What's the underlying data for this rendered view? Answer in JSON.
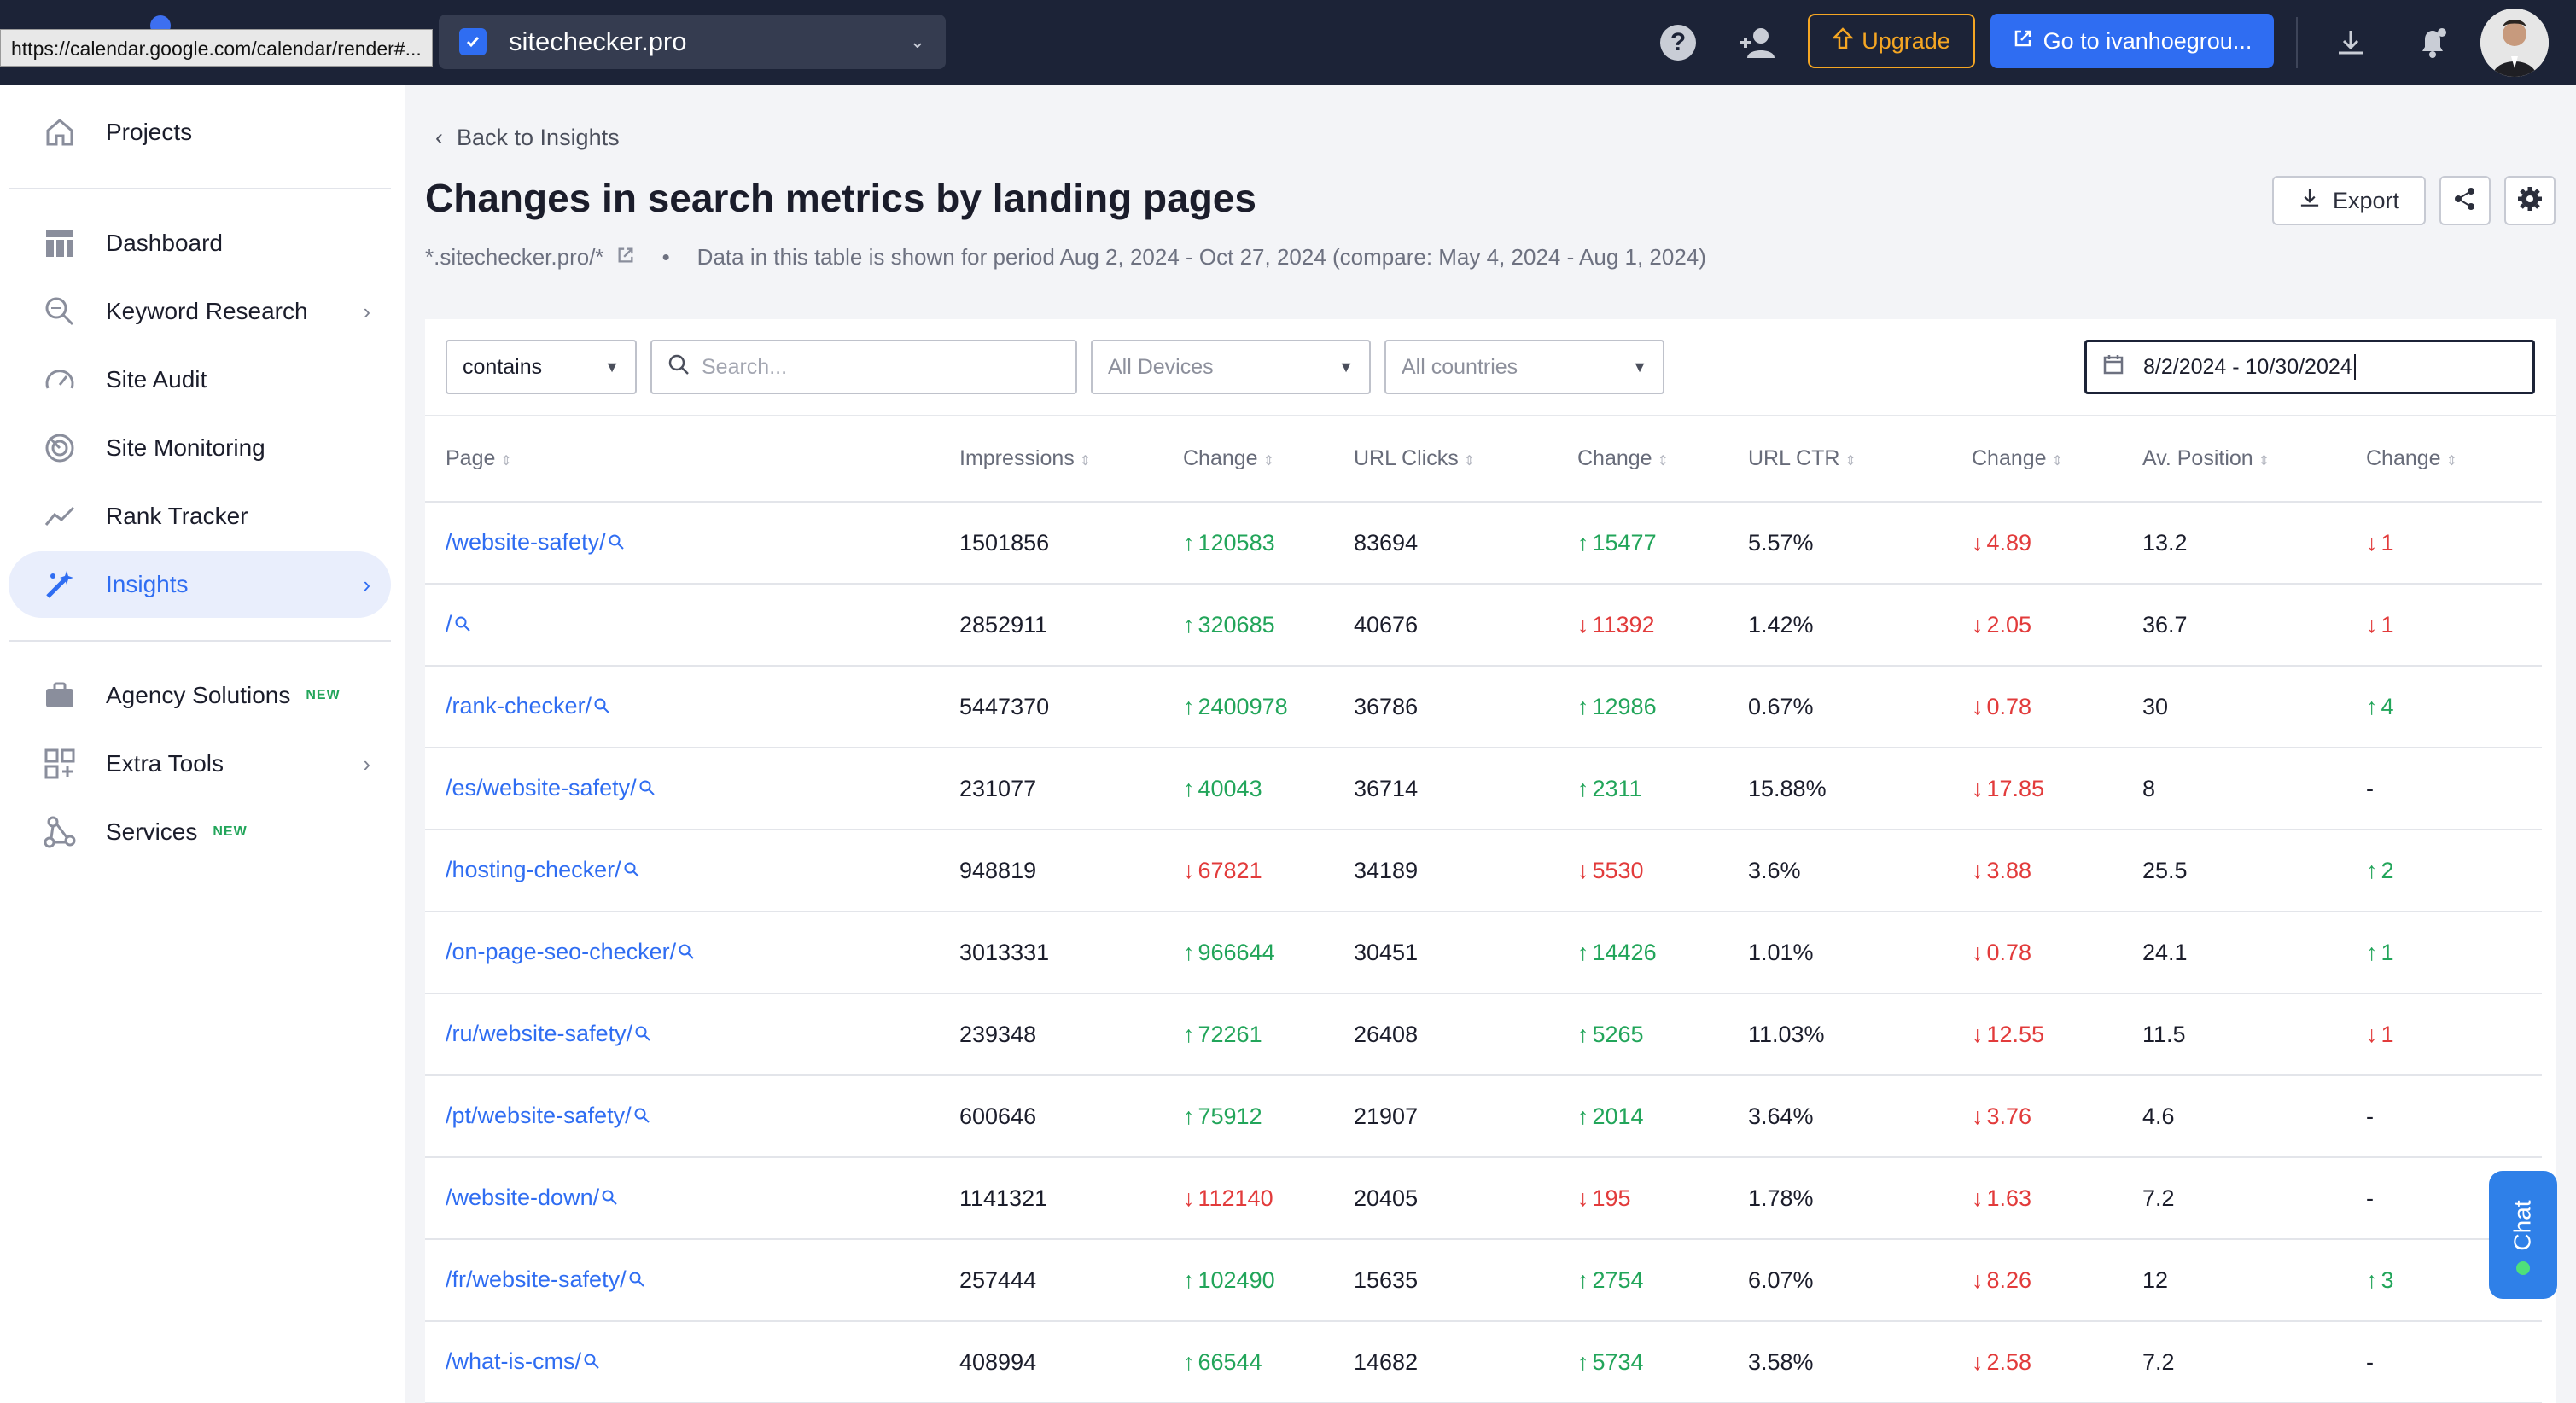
{
  "tooltip": "https://calendar.google.com/calendar/render#...",
  "topbar": {
    "project_name": "sitechecker.pro",
    "upgrade_label": "Upgrade",
    "goto_label": "Go to ivanhoegrou...",
    "accent": "#2f6df2",
    "upgrade_color": "#f5a623"
  },
  "sidebar": {
    "items": [
      {
        "label": "Projects",
        "icon": "home-icon"
      },
      {
        "label": "Dashboard",
        "icon": "dashboard-icon"
      },
      {
        "label": "Keyword Research",
        "icon": "keyword-research-icon"
      },
      {
        "label": "Site Audit",
        "icon": "site-audit-icon"
      },
      {
        "label": "Site Monitoring",
        "icon": "site-monitoring-icon"
      },
      {
        "label": "Rank Tracker",
        "icon": "rank-tracker-icon"
      },
      {
        "label": "Insights",
        "icon": "magic-wand-icon"
      },
      {
        "label": "Agency Solutions",
        "icon": "briefcase-icon",
        "badge": "NEW"
      },
      {
        "label": "Extra Tools",
        "icon": "extra-tools-icon"
      },
      {
        "label": "Services",
        "icon": "services-icon",
        "badge": "NEW"
      }
    ]
  },
  "header": {
    "back_label": "Back to Insights",
    "title": "Changes in search metrics by landing pages",
    "domain": "*.sitechecker.pro/*",
    "bullet": "•",
    "period_text": "Data in this table is shown for period Aug 2, 2024 - Oct 27, 2024 (compare: May 4, 2024 - Aug 1, 2024)",
    "export_label": "Export"
  },
  "filters": {
    "match_type": "contains",
    "search_placeholder": "Search...",
    "devices": "All Devices",
    "countries": "All countries",
    "date_range": "8/2/2024 - 10/30/2024"
  },
  "table": {
    "columns": [
      "Page",
      "Impressions",
      "Change",
      "URL Clicks",
      "Change",
      "URL CTR",
      "Change",
      "Av. Position",
      "Change"
    ],
    "rows": [
      {
        "page": "/website-safety/",
        "impressions": "1501856",
        "imp_change": "120583",
        "imp_dir": "up",
        "clicks": "83694",
        "clicks_change": "15477",
        "clicks_dir": "up",
        "ctr": "5.57%",
        "ctr_change": "4.89",
        "ctr_dir": "down",
        "position": "13.2",
        "pos_change": "1",
        "pos_dir": "down"
      },
      {
        "page": "/",
        "impressions": "2852911",
        "imp_change": "320685",
        "imp_dir": "up",
        "clicks": "40676",
        "clicks_change": "11392",
        "clicks_dir": "down",
        "ctr": "1.42%",
        "ctr_change": "2.05",
        "ctr_dir": "down",
        "position": "36.7",
        "pos_change": "1",
        "pos_dir": "down"
      },
      {
        "page": "/rank-checker/",
        "impressions": "5447370",
        "imp_change": "2400978",
        "imp_dir": "up",
        "clicks": "36786",
        "clicks_change": "12986",
        "clicks_dir": "up",
        "ctr": "0.67%",
        "ctr_change": "0.78",
        "ctr_dir": "down",
        "position": "30",
        "pos_change": "4",
        "pos_dir": "up"
      },
      {
        "page": "/es/website-safety/",
        "impressions": "231077",
        "imp_change": "40043",
        "imp_dir": "up",
        "clicks": "36714",
        "clicks_change": "2311",
        "clicks_dir": "up",
        "ctr": "15.88%",
        "ctr_change": "17.85",
        "ctr_dir": "down",
        "position": "8",
        "pos_change": "-",
        "pos_dir": "none"
      },
      {
        "page": "/hosting-checker/",
        "impressions": "948819",
        "imp_change": "67821",
        "imp_dir": "down",
        "clicks": "34189",
        "clicks_change": "5530",
        "clicks_dir": "down",
        "ctr": "3.6%",
        "ctr_change": "3.88",
        "ctr_dir": "down",
        "position": "25.5",
        "pos_change": "2",
        "pos_dir": "up"
      },
      {
        "page": "/on-page-seo-checker/",
        "impressions": "3013331",
        "imp_change": "966644",
        "imp_dir": "up",
        "clicks": "30451",
        "clicks_change": "14426",
        "clicks_dir": "up",
        "ctr": "1.01%",
        "ctr_change": "0.78",
        "ctr_dir": "down",
        "position": "24.1",
        "pos_change": "1",
        "pos_dir": "up"
      },
      {
        "page": "/ru/website-safety/",
        "impressions": "239348",
        "imp_change": "72261",
        "imp_dir": "up",
        "clicks": "26408",
        "clicks_change": "5265",
        "clicks_dir": "up",
        "ctr": "11.03%",
        "ctr_change": "12.55",
        "ctr_dir": "down",
        "position": "11.5",
        "pos_change": "1",
        "pos_dir": "down"
      },
      {
        "page": "/pt/website-safety/",
        "impressions": "600646",
        "imp_change": "75912",
        "imp_dir": "up",
        "clicks": "21907",
        "clicks_change": "2014",
        "clicks_dir": "up",
        "ctr": "3.64%",
        "ctr_change": "3.76",
        "ctr_dir": "down",
        "position": "4.6",
        "pos_change": "-",
        "pos_dir": "none"
      },
      {
        "page": "/website-down/",
        "impressions": "1141321",
        "imp_change": "112140",
        "imp_dir": "down",
        "clicks": "20405",
        "clicks_change": "195",
        "clicks_dir": "down",
        "ctr": "1.78%",
        "ctr_change": "1.63",
        "ctr_dir": "down",
        "position": "7.2",
        "pos_change": "-",
        "pos_dir": "none"
      },
      {
        "page": "/fr/website-safety/",
        "impressions": "257444",
        "imp_change": "102490",
        "imp_dir": "up",
        "clicks": "15635",
        "clicks_change": "2754",
        "clicks_dir": "up",
        "ctr": "6.07%",
        "ctr_change": "8.26",
        "ctr_dir": "down",
        "position": "12",
        "pos_change": "3",
        "pos_dir": "up"
      },
      {
        "page": "/what-is-cms/",
        "impressions": "408994",
        "imp_change": "66544",
        "imp_dir": "up",
        "clicks": "14682",
        "clicks_change": "5734",
        "clicks_dir": "up",
        "ctr": "3.58%",
        "ctr_change": "2.58",
        "ctr_dir": "down",
        "position": "7.2",
        "pos_change": "-",
        "pos_dir": "none"
      }
    ]
  },
  "chat": {
    "label": "Chat"
  }
}
